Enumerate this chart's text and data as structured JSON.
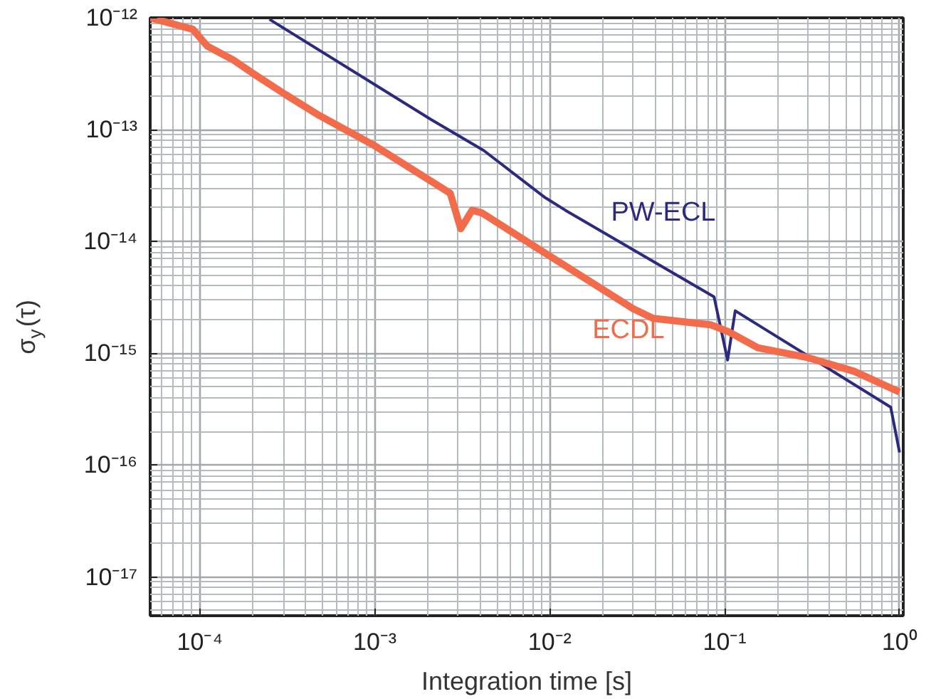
{
  "chart_data": {
    "type": "line",
    "xlabel": "Integration time [s]",
    "ylabel": "σ$_{y}$(τ)",
    "log": "xy",
    "grid": true,
    "legend": false,
    "xlim": [
      5.2e-05,
      1.05
    ],
    "ylim": [
      4.5e-18,
      1e-12
    ],
    "xticks": [
      {
        "value": 0.0001,
        "label": "10⁻⁴"
      },
      {
        "value": 0.001,
        "label": "10⁻³"
      },
      {
        "value": 0.01,
        "label": "10⁻²"
      },
      {
        "value": 0.1,
        "label": "10⁻¹"
      },
      {
        "value": 1,
        "label": "10⁰"
      }
    ],
    "yticks": [
      {
        "value": 1e-17,
        "label": "10⁻¹⁷"
      },
      {
        "value": 1e-16,
        "label": "10⁻¹⁶"
      },
      {
        "value": 1e-15,
        "label": "10⁻¹⁵"
      },
      {
        "value": 1e-14,
        "label": "10⁻¹⁴"
      },
      {
        "value": 1e-13,
        "label": "10⁻¹³"
      },
      {
        "value": 1e-12,
        "label": "10⁻¹²"
      }
    ],
    "series": [
      {
        "name": "PW-ECL",
        "color": "#2b2a7e",
        "x": [
          0.00025,
          0.0021,
          0.0037,
          0.0042,
          0.0093,
          0.0123,
          0.087,
          0.104,
          0.115,
          0.89,
          1.0
        ],
        "values": [
          9.7e-13,
          1.23e-13,
          7.3e-14,
          6.5e-14,
          2.5e-14,
          1.9e-14,
          3.2e-15,
          8.7e-16,
          2.4e-15,
          3.3e-16,
          1.3e-16
        ]
      },
      {
        "name": "ECDL",
        "color": "#f26b4b",
        "x": [
          5.2e-05,
          9.1e-05,
          0.00011,
          0.000155,
          0.0002,
          0.00031,
          0.000485,
          0.00098,
          0.0027,
          0.0031,
          0.0036,
          0.0041,
          0.0085,
          0.03,
          0.039,
          0.083,
          0.106,
          0.155,
          0.295,
          0.55,
          1.0
        ],
        "values": [
          1e-12,
          7.9e-13,
          5.6e-13,
          4.2e-13,
          3.2e-13,
          2.05e-13,
          1.33e-13,
          7.3e-14,
          2.7e-14,
          1.3e-14,
          1.9e-14,
          1.8e-14,
          8.7e-15,
          2.5e-15,
          2.05e-15,
          1.8e-15,
          1.55e-15,
          1.12e-15,
          9.2e-16,
          6.9e-16,
          4.5e-16
        ]
      }
    ]
  }
}
